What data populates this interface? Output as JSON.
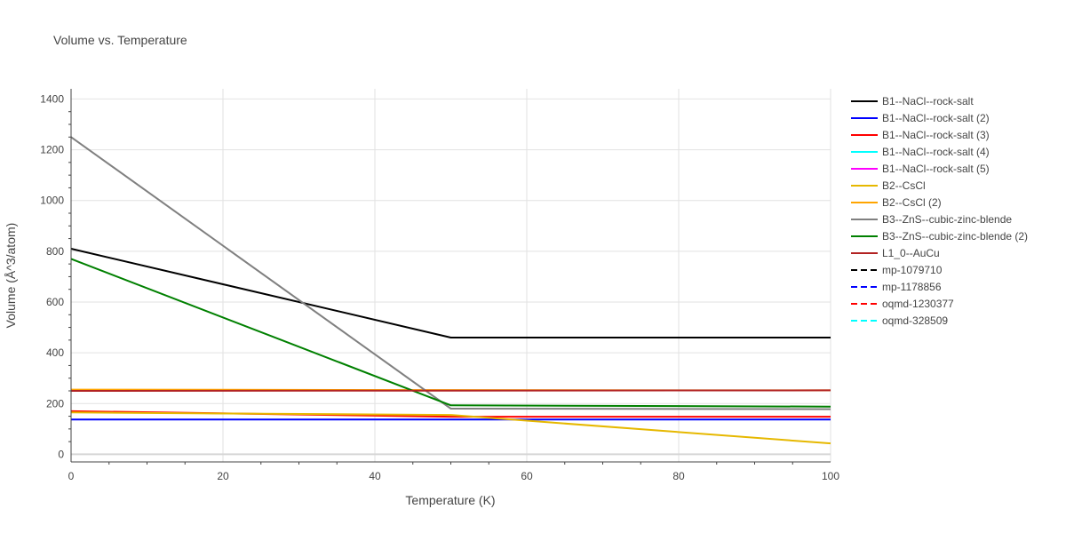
{
  "chart_data": {
    "type": "line",
    "title": "Volume vs. Temperature",
    "xlabel": "Temperature (K)",
    "ylabel": "Volume (Å^3/atom)",
    "xlim": [
      0,
      100
    ],
    "ylim": [
      -30,
      1440
    ],
    "xticks": [
      0,
      20,
      40,
      60,
      80,
      100
    ],
    "yticks": [
      0,
      200,
      400,
      600,
      800,
      1000,
      1200,
      1400
    ],
    "grid": true,
    "legend_position": "right",
    "series": [
      {
        "name": "B1--NaCl--rock-salt",
        "color": "#000000",
        "dash": "solid",
        "x": [
          0,
          50,
          100
        ],
        "y": [
          810,
          460,
          460
        ]
      },
      {
        "name": "B1--NaCl--rock-salt (2)",
        "color": "#0000ff",
        "dash": "solid",
        "x": [
          0,
          50,
          100
        ],
        "y": [
          137,
          137,
          137
        ]
      },
      {
        "name": "B1--NaCl--rock-salt (3)",
        "color": "#ff0000",
        "dash": "solid",
        "x": [
          0,
          50,
          100
        ],
        "y": [
          170,
          148,
          148
        ]
      },
      {
        "name": "B1--NaCl--rock-salt (4)",
        "color": "#00ffff",
        "dash": "solid",
        "x": [],
        "y": []
      },
      {
        "name": "B1--NaCl--rock-salt (5)",
        "color": "#ff00ff",
        "dash": "solid",
        "x": [],
        "y": []
      },
      {
        "name": "B2--CsCl",
        "color": "#e6b800",
        "dash": "solid",
        "x": [
          0,
          50,
          100
        ],
        "y": [
          165,
          155,
          43
        ]
      },
      {
        "name": "B2--CsCl (2)",
        "color": "#ffa500",
        "dash": "solid",
        "x": [
          0,
          50,
          100
        ],
        "y": [
          255,
          253,
          252
        ]
      },
      {
        "name": "B3--ZnS--cubic-zinc-blende",
        "color": "#808080",
        "dash": "solid",
        "x": [
          0,
          50,
          100
        ],
        "y": [
          1250,
          180,
          178
        ]
      },
      {
        "name": "B3--ZnS--cubic-zinc-blende (2)",
        "color": "#008000",
        "dash": "solid",
        "x": [
          0,
          50,
          100
        ],
        "y": [
          770,
          193,
          188
        ]
      },
      {
        "name": "L1_0--AuCu",
        "color": "#b22222",
        "dash": "solid",
        "x": [
          0,
          50,
          100
        ],
        "y": [
          250,
          251,
          252
        ]
      },
      {
        "name": "mp-1079710",
        "color": "#000000",
        "dash": "dash",
        "x": [],
        "y": []
      },
      {
        "name": "mp-1178856",
        "color": "#0000ff",
        "dash": "dash",
        "x": [],
        "y": []
      },
      {
        "name": "oqmd-1230377",
        "color": "#ff0000",
        "dash": "dash",
        "x": [],
        "y": []
      },
      {
        "name": "oqmd-328509",
        "color": "#00ffff",
        "dash": "dash",
        "x": [],
        "y": []
      }
    ]
  }
}
